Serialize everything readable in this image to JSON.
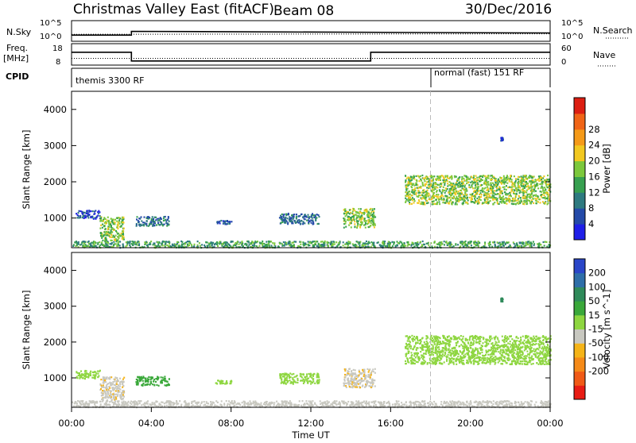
{
  "header": {
    "station": "Christmas Valley East (fitACF)",
    "beam": "Beam 08",
    "date": "30/Dec/2016"
  },
  "labels": {
    "nsky": "N.Sky",
    "nsearch": "N.Search",
    "nave": "Nave",
    "freq": "Freq.",
    "mhz": "[MHz]",
    "cpid": "CPID",
    "nsky_top": "10^5",
    "nsky_bottom": "10^0",
    "nsearch_top": "10^5",
    "nsearch_bottom": "10^0",
    "freq_top": "18",
    "freq_bottom": "8",
    "nave_top": "60",
    "nave_bottom": "0",
    "cpid_1": "themis 3300 RF",
    "cpid_2": "normal (fast) 151 RF"
  },
  "chart_data": [
    {
      "type": "heatmap",
      "title": "Power",
      "ylabel": "Slant Range [km]",
      "xlabel": "Time UT",
      "x_ticks": [
        "00:00",
        "04:00",
        "08:00",
        "12:00",
        "16:00",
        "20:00",
        "00:00"
      ],
      "y_ticks": [
        1000,
        2000,
        3000,
        4000
      ],
      "xlim_hours": [
        0,
        24
      ],
      "ylim": [
        180,
        4500
      ],
      "colorbar_label": "Power [dB]",
      "colorbar_ticks": [
        4,
        8,
        12,
        16,
        20,
        24,
        28
      ],
      "colorbar_colors": [
        "#1f1fe8",
        "#244aa8",
        "#2e7a80",
        "#37a050",
        "#7cc83c",
        "#f2c820",
        "#f59a18",
        "#f06416",
        "#dc1e12"
      ],
      "echo_regions": [
        {
          "t0": 0.0,
          "t1": 24.0,
          "r0": 200,
          "r1": 380,
          "value": 14
        },
        {
          "t0": 0.2,
          "t1": 1.4,
          "r0": 1000,
          "r1": 1230,
          "value": 6
        },
        {
          "t0": 1.4,
          "t1": 2.6,
          "r0": 400,
          "r1": 1050,
          "value": 18
        },
        {
          "t0": 3.2,
          "t1": 4.9,
          "r0": 800,
          "r1": 1060,
          "value": 9
        },
        {
          "t0": 7.2,
          "t1": 8.0,
          "r0": 850,
          "r1": 950,
          "value": 6
        },
        {
          "t0": 10.4,
          "t1": 12.4,
          "r0": 850,
          "r1": 1150,
          "value": 9
        },
        {
          "t0": 13.6,
          "t1": 15.2,
          "r0": 750,
          "r1": 1280,
          "value": 18
        },
        {
          "t0": 16.7,
          "t1": 24.0,
          "r0": 1400,
          "r1": 2200,
          "value": 18
        },
        {
          "t0": 21.5,
          "t1": 21.6,
          "r0": 3150,
          "r1": 3250,
          "value": 6
        }
      ]
    },
    {
      "type": "heatmap",
      "title": "Velocity",
      "ylabel": "Slant Range [km]",
      "xlabel": "Time UT",
      "x_ticks": [
        "00:00",
        "04:00",
        "08:00",
        "12:00",
        "16:00",
        "20:00",
        "00:00"
      ],
      "y_ticks": [
        1000,
        2000,
        3000,
        4000
      ],
      "xlim_hours": [
        0,
        24
      ],
      "ylim": [
        180,
        4500
      ],
      "colorbar_label": "Velocity [m s^-1]",
      "colorbar_ticks": [
        "200",
        "100",
        "50",
        "15",
        "-15",
        "-50",
        "-100",
        "-200"
      ],
      "colorbar_colors": [
        "#2a46c8",
        "#2e6ea8",
        "#2f8a5a",
        "#3aa83a",
        "#8ed640",
        "#c8c8c0",
        "#f5b418",
        "#f58a18",
        "#f05a16",
        "#e81c14"
      ],
      "echo_regions": [
        {
          "t0": 0.0,
          "t1": 24.0,
          "r0": 200,
          "r1": 380,
          "value": -30
        },
        {
          "t0": 0.2,
          "t1": 1.4,
          "r0": 1000,
          "r1": 1230,
          "value": 0
        },
        {
          "t0": 1.4,
          "t1": 2.6,
          "r0": 400,
          "r1": 1050,
          "value": -40
        },
        {
          "t0": 3.2,
          "t1": 4.9,
          "r0": 800,
          "r1": 1060,
          "value": 30
        },
        {
          "t0": 7.2,
          "t1": 8.0,
          "r0": 850,
          "r1": 950,
          "value": 0
        },
        {
          "t0": 10.4,
          "t1": 12.4,
          "r0": 850,
          "r1": 1150,
          "value": 0
        },
        {
          "t0": 13.6,
          "t1": 15.2,
          "r0": 750,
          "r1": 1280,
          "value": -40
        },
        {
          "t0": 16.7,
          "t1": 24.0,
          "r0": 1400,
          "r1": 2200,
          "value": 0
        },
        {
          "t0": 21.5,
          "t1": 21.6,
          "r0": 3150,
          "r1": 3250,
          "value": 80
        }
      ]
    },
    {
      "type": "line",
      "title": "N.Sky / N.Search",
      "series": [
        {
          "name": "N.Sky",
          "x": [
            0,
            3.0,
            3.0,
            24.0
          ],
          "y": [
            0.3,
            0.3,
            0.48,
            0.4
          ]
        },
        {
          "name": "N.Search",
          "x": [
            0,
            24
          ],
          "y": [
            0.34,
            0.36
          ]
        }
      ]
    },
    {
      "type": "line",
      "title": "Freq. / Nave",
      "series": [
        {
          "name": "Freq.",
          "x": [
            0,
            3.0,
            3.0,
            15.0,
            15.0,
            24.0
          ],
          "y": [
            14.2,
            14.2,
            9.3,
            9.3,
            14.2,
            14.2
          ]
        },
        {
          "name": "Nave",
          "x": [
            0,
            24
          ],
          "y": [
            19,
            19
          ]
        }
      ]
    }
  ]
}
